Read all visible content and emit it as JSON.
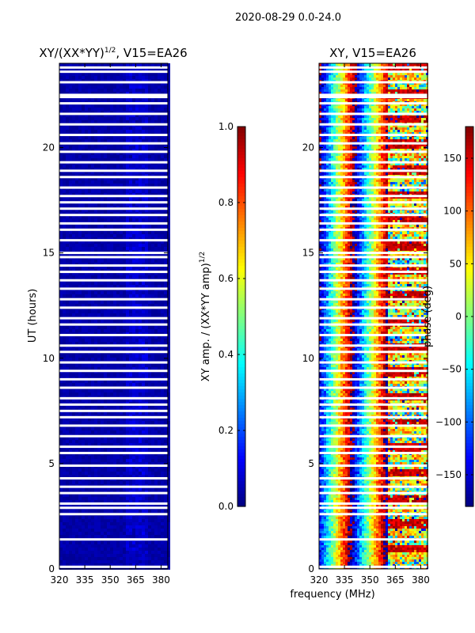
{
  "suptitle": "2020-08-29 0.0-24.0",
  "chart_data": [
    {
      "type": "heatmap",
      "title": "XY/(XX*YY)^1/2, V15=EA26",
      "title_main": "XY/(XX*YY)",
      "title_sup": "1/2",
      "title_tail": ", V15=EA26",
      "xlabel": "",
      "ylabel": "UT (hours)",
      "xlim": [
        320,
        384
      ],
      "ylim": [
        0,
        24
      ],
      "xticks": [
        320,
        335,
        350,
        365,
        380
      ],
      "yticks": [
        0,
        5,
        10,
        15,
        20
      ],
      "colorbar": {
        "label": "XY amp. / (XX*YY amp)^1/2",
        "label_main": "XY amp. / (XX*YY amp)",
        "label_sup": "1/2",
        "range": [
          0.0,
          1.0
        ],
        "ticks": [
          0.0,
          0.2,
          0.4,
          0.6,
          0.8,
          1.0
        ],
        "tick_labels": [
          "0.0",
          "0.2",
          "0.4",
          "0.6",
          "0.8",
          "1.0"
        ],
        "colormap": "jet"
      },
      "typical_value": 0.03,
      "missing_rows_ut": [
        0.1,
        1.4,
        2.6,
        2.9,
        3.1,
        3.6,
        3.9,
        4.3,
        4.9,
        5.5,
        5.8,
        6.3,
        6.8,
        7.2,
        7.5,
        7.8,
        8.1,
        8.6,
        9.0,
        9.4,
        9.8,
        10.3,
        10.6,
        11.1,
        11.6,
        11.9,
        12.4,
        12.8,
        13.3,
        13.7,
        14.1,
        14.4,
        14.8,
        15.0,
        15.6,
        16.1,
        16.4,
        16.8,
        17.1,
        17.4,
        17.7,
        18.1,
        18.6,
        18.9,
        19.3,
        19.8,
        20.2,
        20.6,
        21.1,
        21.6,
        22.1,
        22.4,
        22.5,
        23.1,
        23.6,
        23.8
      ]
    },
    {
      "type": "heatmap",
      "title": "XY, V15=EA26",
      "xlabel": "frequency (MHz)",
      "ylabel": "",
      "xlim": [
        320,
        384
      ],
      "ylim": [
        0,
        24
      ],
      "xticks": [
        320,
        335,
        350,
        365,
        380
      ],
      "yticks": [
        0,
        5,
        10,
        15,
        20
      ],
      "colorbar": {
        "label": "phase (deg)",
        "range": [
          -180,
          180
        ],
        "ticks": [
          -150,
          -100,
          -50,
          0,
          50,
          100,
          150
        ],
        "tick_labels": [
          "−150",
          "−100",
          "−50",
          "0",
          "50",
          "100",
          "150"
        ],
        "colormap": "jet"
      },
      "missing_rows_ut": [
        0.1,
        1.4,
        2.6,
        2.9,
        3.1,
        3.6,
        3.9,
        4.3,
        4.9,
        5.5,
        5.8,
        6.3,
        6.8,
        7.2,
        7.5,
        7.8,
        8.1,
        8.6,
        9.0,
        9.4,
        9.8,
        10.3,
        10.6,
        11.1,
        11.6,
        11.9,
        12.4,
        12.8,
        13.3,
        13.7,
        14.1,
        14.4,
        14.8,
        15.0,
        15.6,
        16.1,
        16.4,
        16.8,
        17.1,
        17.4,
        17.7,
        18.1,
        18.6,
        18.9,
        19.3,
        19.8,
        20.2,
        20.6,
        21.1,
        21.6,
        22.1,
        22.4,
        22.5,
        23.1,
        23.6,
        23.8
      ]
    }
  ]
}
